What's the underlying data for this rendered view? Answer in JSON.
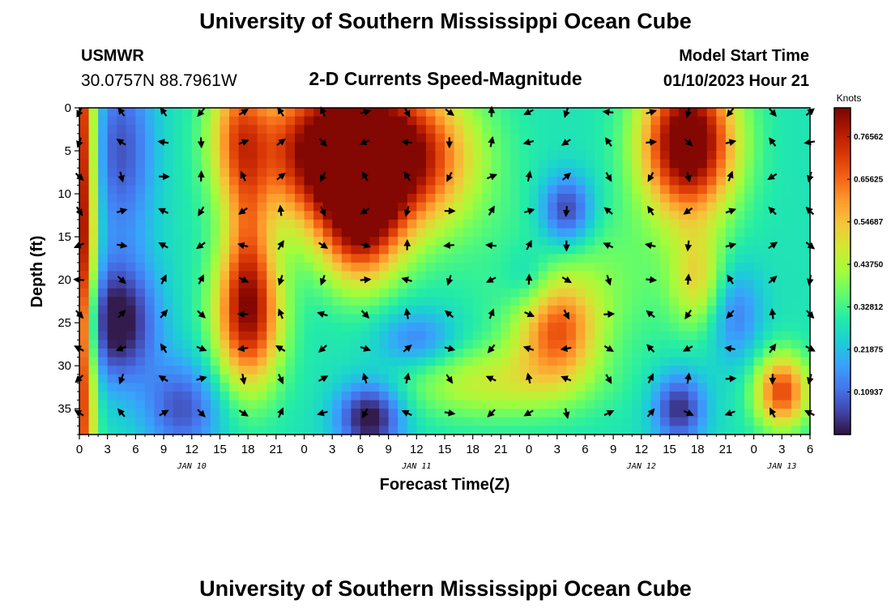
{
  "header": {
    "title": "University of Southern Mississippi Ocean Cube",
    "station_name": "USMWR",
    "station_coords": "30.0757N  88.7961W",
    "product": "2-D Currents Speed-Magnitude",
    "model_start_label": "Model Start Time",
    "model_start_value": "01/10/2023 Hour 21"
  },
  "footer": {
    "title": "University of Southern Mississippi Ocean Cube"
  },
  "chart_data": {
    "type": "heatmap",
    "title": "2-D Currents Speed-Magnitude",
    "xlabel": "Forecast Time(Z)",
    "ylabel": "Depth (ft)",
    "x_range_hours": [
      0,
      78
    ],
    "y_range_ft": [
      0,
      38
    ],
    "y_reversed": true,
    "x_ticks": [
      "0",
      "3",
      "6",
      "9",
      "12",
      "15",
      "18",
      "21",
      "0",
      "3",
      "6",
      "9",
      "12",
      "15",
      "18",
      "21",
      "0",
      "3",
      "6",
      "9",
      "12",
      "15",
      "18",
      "21",
      "0",
      "3",
      "6"
    ],
    "y_ticks": [
      "0",
      "5",
      "10",
      "15",
      "20",
      "25",
      "30",
      "35"
    ],
    "y_tick_values": [
      0,
      5,
      10,
      15,
      20,
      25,
      30,
      35
    ],
    "date_labels": [
      {
        "label": "JAN 10",
        "hour": 12
      },
      {
        "label": "JAN 11",
        "hour": 36
      },
      {
        "label": "JAN 12",
        "hour": 60
      },
      {
        "label": "JAN 13",
        "hour": 75
      }
    ],
    "colorbar": {
      "unit": "Knots",
      "min": 0.0,
      "max": 0.84,
      "ticks": [
        "0.76562",
        "0.65625",
        "0.54687",
        "0.43750",
        "0.32812",
        "0.21875",
        "0.10937"
      ],
      "tick_values": [
        0.76562,
        0.65625,
        0.54687,
        0.4375,
        0.32812,
        0.21875,
        0.10937
      ],
      "colors": {
        "c0": "#30123b",
        "c1": "#4145ab",
        "c2": "#4675ed",
        "c3": "#39a2fc",
        "c4": "#1bcfd4",
        "c5": "#24eca6",
        "c6": "#61fc6c",
        "c7": "#a4fc3b",
        "c8": "#d1e834",
        "c9": "#f3c63a",
        "c10": "#fe9b2d",
        "c11": "#f36315",
        "c12": "#d93806",
        "c13": "#b11901",
        "c14": "#7a0402"
      }
    },
    "speed_features": [
      {
        "hour": 0.3,
        "depth": 15,
        "sh": 1.0,
        "sd": 30,
        "amp": 0.55
      },
      {
        "hour": 4,
        "depth": 25,
        "sh": 3.0,
        "sd": 5,
        "amp": -0.3
      },
      {
        "hour": 4.5,
        "depth": 5,
        "sh": 2.5,
        "sd": 8,
        "amp": -0.2
      },
      {
        "hour": 11,
        "depth": 35,
        "sh": 3.0,
        "sd": 4,
        "amp": -0.2
      },
      {
        "hour": 17,
        "depth": 3,
        "sh": 2.2,
        "sd": 6,
        "amp": 0.3
      },
      {
        "hour": 18,
        "depth": 24,
        "sh": 2.5,
        "sd": 6,
        "amp": 0.52
      },
      {
        "hour": 18,
        "depth": 14,
        "sh": 1.6,
        "sd": 6,
        "amp": 0.15
      },
      {
        "hour": 28,
        "depth": 5,
        "sh": 6.0,
        "sd": 6,
        "amp": 0.7
      },
      {
        "hour": 30,
        "depth": 14,
        "sh": 3.0,
        "sd": 5,
        "amp": 0.4
      },
      {
        "hour": 36,
        "depth": 6,
        "sh": 5.0,
        "sd": 6,
        "amp": 0.3
      },
      {
        "hour": 31,
        "depth": 36,
        "sh": 2.5,
        "sd": 3,
        "amp": -0.3
      },
      {
        "hour": 36,
        "depth": 27,
        "sh": 3.0,
        "sd": 2.5,
        "amp": -0.15
      },
      {
        "hour": 48,
        "depth": 20,
        "sh": 2.0,
        "sd": 3,
        "amp": -0.1
      },
      {
        "hour": 52,
        "depth": 12,
        "sh": 2.0,
        "sd": 3,
        "amp": -0.25
      },
      {
        "hour": 51,
        "depth": 26,
        "sh": 3.0,
        "sd": 4,
        "amp": 0.34
      },
      {
        "hour": 44,
        "depth": 32,
        "sh": 7.0,
        "sd": 3,
        "amp": 0.18
      },
      {
        "hour": 54,
        "depth": 20,
        "sh": 7.0,
        "sd": 6,
        "amp": 0.1
      },
      {
        "hour": 65,
        "depth": 4,
        "sh": 3.5,
        "sd": 6,
        "amp": 0.65
      },
      {
        "hour": 66,
        "depth": 20,
        "sh": 2.0,
        "sd": 4,
        "amp": 0.2
      },
      {
        "hour": 64,
        "depth": 35,
        "sh": 2.0,
        "sd": 3,
        "amp": -0.25
      },
      {
        "hour": 70,
        "depth": 24,
        "sh": 2.0,
        "sd": 4,
        "amp": -0.15
      },
      {
        "hour": 75,
        "depth": 33,
        "sh": 2.0,
        "sd": 3,
        "amp": 0.42
      }
    ],
    "arrow_columns_hours": [
      0,
      4.5,
      9,
      13,
      17.5,
      21.5,
      26,
      30.5,
      35,
      39.5,
      44,
      48,
      52,
      56.5,
      61,
      65,
      69.5,
      74,
      78
    ],
    "arrow_rows_depth": [
      0.5,
      4,
      8,
      12,
      16,
      20,
      24,
      28,
      31.5,
      35.5
    ]
  }
}
